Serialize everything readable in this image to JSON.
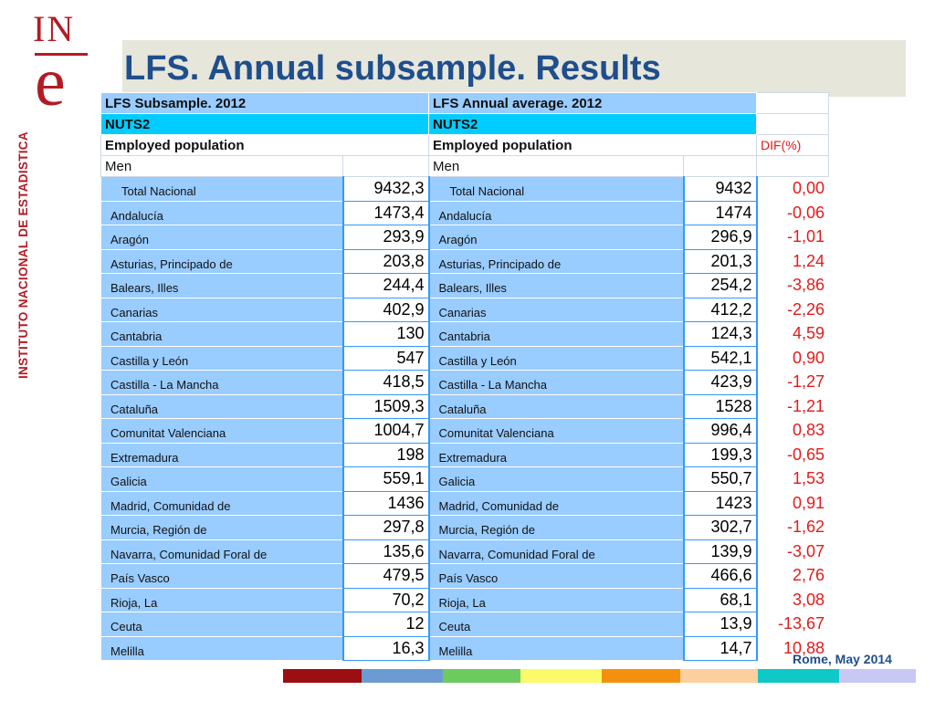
{
  "logo": {
    "top": "IN",
    "letter": "e"
  },
  "vertical_text": "INSTITUTO NACIONAL DE ESTADISTICA",
  "title": "LFS.  Annual subsample. Results",
  "table": {
    "left_header1": "LFS Subsample. 2012",
    "right_header1": "LFS Annual average. 2012",
    "left_header2": "NUTS2",
    "right_header2": "NUTS2",
    "left_header3": "Employed population",
    "right_header3": "Employed population",
    "dif_header": "DIF(%)",
    "left_men": "Men",
    "right_men": "Men",
    "rows": [
      {
        "label": "Total Nacional",
        "sub": "9432,3",
        "avg": "9432",
        "dif": "0,00"
      },
      {
        "label": "Andalucía",
        "sub": "1473,4",
        "avg": "1474",
        "dif": "-0,06"
      },
      {
        "label": "Aragón",
        "sub": "293,9",
        "avg": "296,9",
        "dif": "-1,01"
      },
      {
        "label": "Asturias, Principado de",
        "sub": "203,8",
        "avg": "201,3",
        "dif": "1,24"
      },
      {
        "label": "Balears, Illes",
        "sub": "244,4",
        "avg": "254,2",
        "dif": "-3,86"
      },
      {
        "label": "Canarias",
        "sub": "402,9",
        "avg": "412,2",
        "dif": "-2,26"
      },
      {
        "label": "Cantabria",
        "sub": "130",
        "avg": "124,3",
        "dif": "4,59"
      },
      {
        "label": "Castilla y León",
        "sub": "547",
        "avg": "542,1",
        "dif": "0,90"
      },
      {
        "label": "Castilla - La Mancha",
        "sub": "418,5",
        "avg": "423,9",
        "dif": "-1,27"
      },
      {
        "label": "Cataluña",
        "sub": "1509,3",
        "avg": "1528",
        "dif": "-1,21"
      },
      {
        "label": "Comunitat Valenciana",
        "sub": "1004,7",
        "avg": "996,4",
        "dif": "0,83"
      },
      {
        "label": "Extremadura",
        "sub": "198",
        "avg": "199,3",
        "dif": "-0,65"
      },
      {
        "label": "Galicia",
        "sub": "559,1",
        "avg": "550,7",
        "dif": "1,53"
      },
      {
        "label": "Madrid, Comunidad de",
        "sub": "1436",
        "avg": "1423",
        "dif": "0,91"
      },
      {
        "label": "Murcia, Región de",
        "sub": "297,8",
        "avg": "302,7",
        "dif": "-1,62"
      },
      {
        "label": "Navarra, Comunidad Foral de",
        "sub": "135,6",
        "avg": "139,9",
        "dif": "-3,07"
      },
      {
        "label": "País Vasco",
        "sub": "479,5",
        "avg": "466,6",
        "dif": "2,76"
      },
      {
        "label": "Rioja, La",
        "sub": "70,2",
        "avg": "68,1",
        "dif": "3,08"
      },
      {
        "label": "Ceuta",
        "sub": "12",
        "avg": "13,9",
        "dif": "-13,67"
      },
      {
        "label": "Melilla",
        "sub": "16,3",
        "avg": "14,7",
        "dif": "10,88"
      }
    ]
  },
  "footer": "Rome, May 2014",
  "colors": {
    "brand_red": "#b31b24",
    "title_blue": "#1f4e8c",
    "cell_light_blue": "#99ccff",
    "cell_cyan": "#00ccff",
    "dif_red": "#e31b1b",
    "strip": [
      "#9b0f12",
      "#6c9bd2",
      "#6ccb5f",
      "#fafa6b",
      "#f5900f",
      "#fccf9e",
      "#10c8c8",
      "#c8c8f5"
    ]
  }
}
